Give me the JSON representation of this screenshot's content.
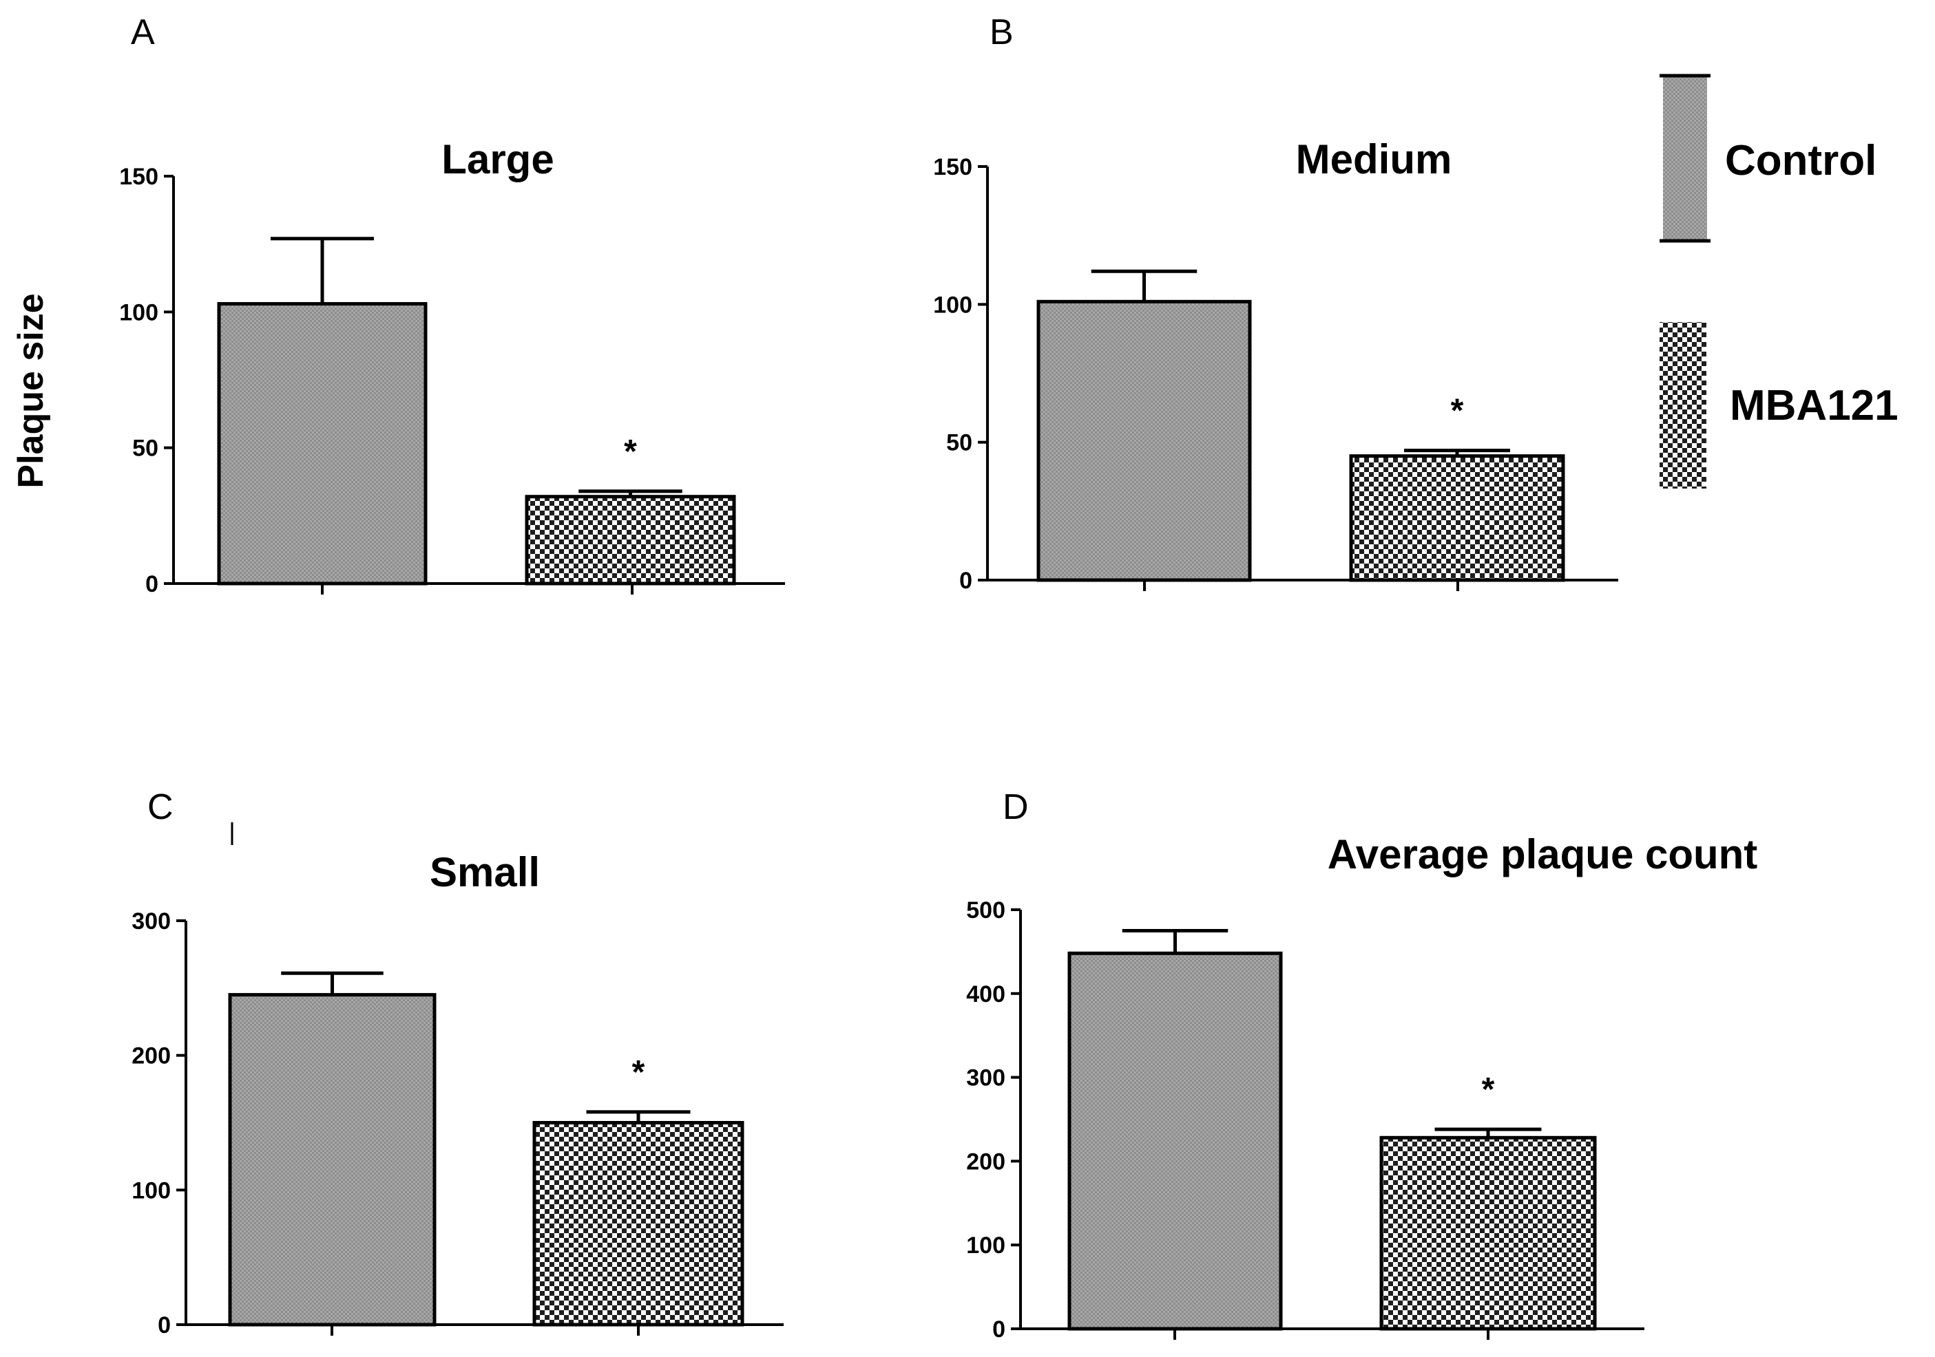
{
  "figure": {
    "ylabel": "Plaque size",
    "legend": {
      "placement": "top-right",
      "entries": [
        {
          "name": "Control",
          "pattern": "fine-gray"
        },
        {
          "name": "MBA121",
          "pattern": "checker"
        }
      ]
    }
  },
  "colors": {
    "axis": "#000000",
    "control_fill": "#8c8c8c",
    "control_dot": "#a8a8a8",
    "mba_light": "#ffffff",
    "mba_dark": "#1e1e1e",
    "text": "#000000"
  },
  "chart_data": [
    {
      "panel": "A",
      "type": "bar",
      "title": "Large",
      "xlabel": "",
      "ylabel": "Plaque size",
      "ylim": [
        0,
        150
      ],
      "yticks": [
        0,
        50,
        100,
        150
      ],
      "categories": [
        "Control",
        "MBA121"
      ],
      "values": [
        103,
        32
      ],
      "errors": [
        24,
        2
      ],
      "significance": [
        "",
        "*"
      ]
    },
    {
      "panel": "B",
      "type": "bar",
      "title": "Medium",
      "xlabel": "",
      "ylabel": "",
      "ylim": [
        0,
        150
      ],
      "yticks": [
        0,
        50,
        100,
        150
      ],
      "categories": [
        "Control",
        "MBA121"
      ],
      "values": [
        101,
        45
      ],
      "errors": [
        11,
        2
      ],
      "significance": [
        "",
        "*"
      ]
    },
    {
      "panel": "C",
      "type": "bar",
      "title": "Small",
      "xlabel": "",
      "ylabel": "",
      "ylim": [
        0,
        300
      ],
      "yticks": [
        0,
        100,
        200,
        300
      ],
      "categories": [
        "Control",
        "MBA121"
      ],
      "values": [
        245,
        150
      ],
      "errors": [
        16,
        8
      ],
      "significance": [
        "",
        "*"
      ]
    },
    {
      "panel": "D",
      "type": "bar",
      "title": "Average plaque count",
      "xlabel": "",
      "ylabel": "",
      "ylim": [
        0,
        500
      ],
      "yticks": [
        0,
        100,
        200,
        300,
        400,
        500
      ],
      "categories": [
        "Control",
        "MBA121"
      ],
      "values": [
        448,
        228
      ],
      "errors": [
        27,
        10
      ],
      "significance": [
        "",
        "*"
      ]
    }
  ]
}
